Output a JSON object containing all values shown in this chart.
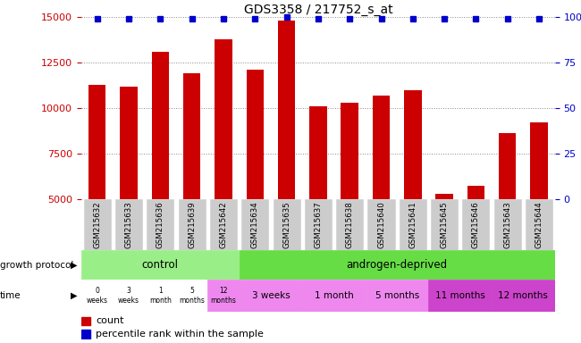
{
  "title": "GDS3358 / 217752_s_at",
  "samples": [
    "GSM215632",
    "GSM215633",
    "GSM215636",
    "GSM215639",
    "GSM215642",
    "GSM215634",
    "GSM215635",
    "GSM215637",
    "GSM215638",
    "GSM215640",
    "GSM215641",
    "GSM215645",
    "GSM215646",
    "GSM215643",
    "GSM215644"
  ],
  "counts": [
    11300,
    11200,
    13100,
    11900,
    13800,
    12100,
    14800,
    10100,
    10300,
    10700,
    11000,
    5300,
    5700,
    8600,
    9200
  ],
  "percentile_ranks": [
    99,
    99,
    99,
    99,
    99,
    99,
    100,
    99,
    99,
    99,
    99,
    99,
    99,
    99,
    99
  ],
  "ylim_left": [
    5000,
    15000
  ],
  "ylim_right": [
    0,
    100
  ],
  "yticks_left": [
    5000,
    7500,
    10000,
    12500,
    15000
  ],
  "yticks_right": [
    0,
    25,
    50,
    75,
    100
  ],
  "bar_color": "#cc0000",
  "percentile_color": "#0000cc",
  "bar_width": 0.55,
  "ctrl_label": "control",
  "ctrl_color": "#99ee88",
  "and_label": "androgen-deprived",
  "and_color": "#66dd44",
  "time_ctrl_labels": [
    "0\nweeks",
    "3\nweeks",
    "1\nmonth",
    "5\nmonths",
    "12\nmonths"
  ],
  "time_ctrl_colors": [
    "#ffffff",
    "#ffffff",
    "#ffffff",
    "#ffffff",
    "#ee88ee"
  ],
  "androgen_time_groups": [
    [
      5,
      7,
      "3 weeks",
      "#ee88ee"
    ],
    [
      7,
      9,
      "1 month",
      "#ee88ee"
    ],
    [
      9,
      11,
      "5 months",
      "#ee88ee"
    ],
    [
      11,
      13,
      "11 months",
      "#cc44cc"
    ],
    [
      13,
      15,
      "12 months",
      "#cc44cc"
    ]
  ],
  "sample_bg_color": "#cccccc",
  "grid_color": "#888888",
  "tick_color_left": "#cc0000",
  "tick_color_right": "#0000cc",
  "legend_bar_color": "#cc0000",
  "legend_pct_color": "#0000cc"
}
